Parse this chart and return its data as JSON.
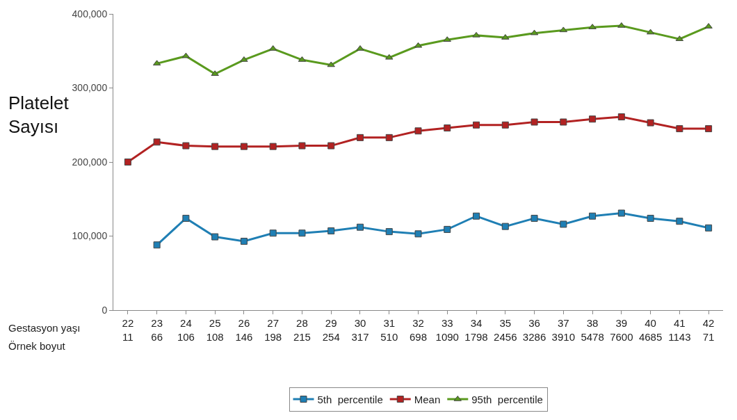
{
  "chart_data": {
    "type": "line",
    "ylabel": "Platelet Sayısı",
    "xlabel": "Gestasyon yaşı",
    "annotations": [
      "Örnek boyut"
    ],
    "categories": [
      "22\n11",
      "23\n66",
      "24\n106",
      "25\n108",
      "26\n146",
      "27\n198",
      "28\n215",
      "29\n254",
      "30\n317",
      "31\n510",
      "32\n698",
      "33\n1090",
      "34\n1798",
      "35\n2456",
      "36\n3286",
      "37\n3910",
      "38\n5478",
      "39\n7600",
      "40\n4685",
      "41\n1143",
      "42\n71"
    ],
    "ylim": [
      0,
      400000
    ],
    "yticks": [
      {
        "value": 0,
        "label": "0"
      },
      {
        "value": 100000,
        "label": "100,000"
      },
      {
        "value": 200000,
        "label": "200,000"
      },
      {
        "value": 300000,
        "label": "300,000"
      },
      {
        "value": 400000,
        "label": "400,000"
      }
    ],
    "legend": "bottom",
    "line_style": "solid",
    "series": [
      {
        "name": "5th  percentile",
        "color": "#1f7fb4",
        "marker": "square",
        "values": [
          null,
          88000,
          124000,
          99000,
          93000,
          104000,
          104000,
          107000,
          112000,
          106000,
          103000,
          109000,
          127000,
          113000,
          124000,
          116000,
          127000,
          131000,
          124000,
          120000,
          111000
        ]
      },
      {
        "name": "Mean",
        "color": "#b22222",
        "marker": "square",
        "values": [
          200000,
          227000,
          222000,
          221000,
          221000,
          221000,
          222000,
          222000,
          233000,
          233000,
          242000,
          246000,
          250000,
          250000,
          254000,
          254000,
          258000,
          261000,
          253000,
          245000,
          245000
        ]
      },
      {
        "name": "95th  percentile",
        "color": "#5a9a1e",
        "marker": "triangle",
        "values": [
          null,
          333000,
          343000,
          319000,
          338000,
          353000,
          338000,
          331000,
          353000,
          341000,
          357000,
          365000,
          371000,
          368000,
          374000,
          378000,
          382000,
          384000,
          375000,
          366000,
          383000
        ]
      }
    ]
  }
}
